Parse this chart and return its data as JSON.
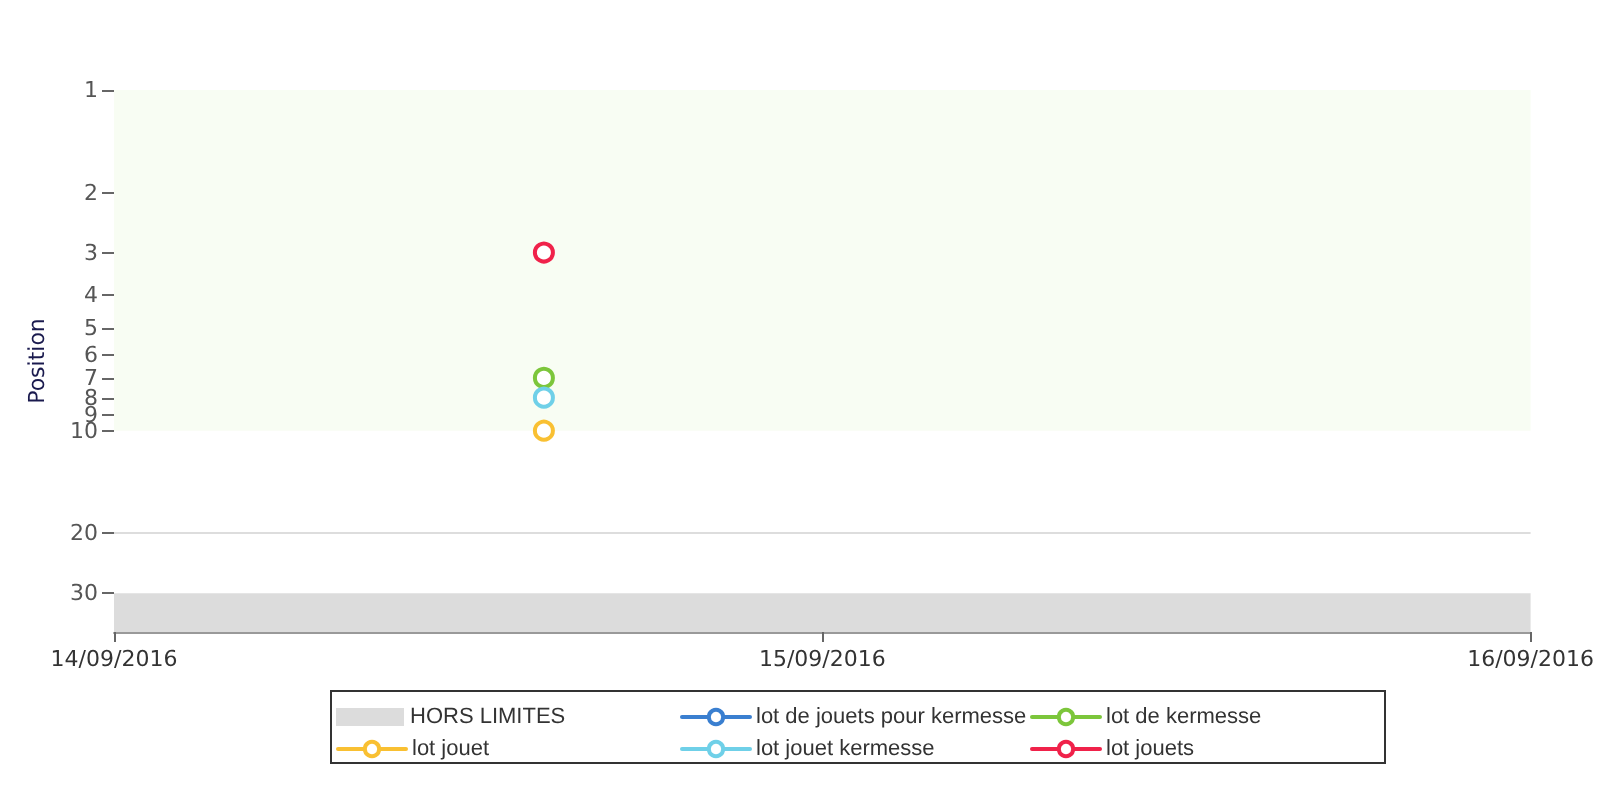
{
  "chart_data": {
    "type": "line",
    "ylabel": "Position",
    "x": [
      "2016-09-14T14:34"
    ],
    "series": [
      {
        "name": "lot de jouets pour kermesse",
        "color": "#3a7fd0",
        "values": [
          null
        ]
      },
      {
        "name": "lot de kermesse",
        "color": "#7cc63b",
        "values": [
          7
        ]
      },
      {
        "name": "lot jouet",
        "color": "#f9c032",
        "values": [
          10
        ]
      },
      {
        "name": "lot jouet kermesse",
        "color": "#6fd0e8",
        "values": [
          8
        ]
      },
      {
        "name": "lot jouets",
        "color": "#f0224a",
        "values": [
          3
        ]
      }
    ],
    "xlim": [
      "2016-09-14T00:00",
      "2016-09-16T00:00"
    ],
    "xticks": [
      {
        "value": "2016-09-14T00:00",
        "label": "14/09/2016"
      },
      {
        "value": "2016-09-15T00:00",
        "label": "15/09/2016"
      },
      {
        "value": "2016-09-16T00:00",
        "label": "16/09/2016"
      }
    ],
    "ylim": [
      39,
      1
    ],
    "yticks": [
      1,
      2,
      3,
      4,
      5,
      6,
      7,
      8,
      9,
      10,
      20,
      30
    ],
    "log": "y",
    "bands": [
      {
        "axis": "y",
        "from": 1,
        "to": 10,
        "color": "#f8fdf3"
      },
      {
        "axis": "y",
        "from": 30,
        "to": 39,
        "label": "HORS LIMITES",
        "color": "#dcdcdc"
      }
    ],
    "ref_lines": [
      {
        "axis": "y",
        "value": 20,
        "color": "#dddddd"
      }
    ],
    "grid": false,
    "legend": "bottom",
    "marker": "circle",
    "line_style": "solid"
  }
}
